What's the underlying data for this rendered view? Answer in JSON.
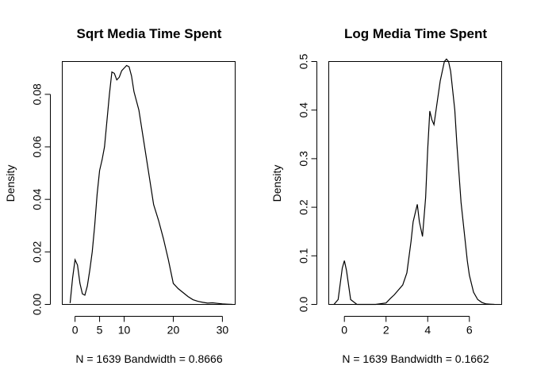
{
  "chart_data": [
    {
      "type": "line",
      "title": "Sqrt Media Time Spent",
      "xlabel": "N = 1639   Bandwidth = 0.8666",
      "ylabel": "Density",
      "xlim": [
        -2.6,
        32.6
      ],
      "ylim": [
        0,
        0.0925
      ],
      "xticks": [
        0,
        5,
        10,
        20,
        30
      ],
      "yticks": [
        0.0,
        0.02,
        0.04,
        0.06,
        0.08
      ],
      "ytick_labels": [
        "0.00",
        "0.02",
        "0.04",
        "0.06",
        "0.08"
      ],
      "grid": false,
      "series": [
        {
          "x": [
            -1.0,
            -0.5,
            0,
            0.5,
            1.0,
            1.5,
            2.0,
            2.5,
            3.0,
            3.5,
            4.0,
            4.5,
            5.0,
            5.5,
            6.0,
            7.0,
            7.5,
            8.0,
            8.5,
            9.0,
            9.5,
            10.0,
            10.5,
            11.0,
            11.5,
            12.0,
            13.0,
            14.0,
            15.0,
            16.0,
            17.0,
            18.0,
            19.0,
            20.0,
            21.0,
            22.0,
            23.0,
            24.0,
            25.0,
            26.0,
            27.0,
            28.0,
            29.0,
            30.0,
            31.0,
            32.0
          ],
          "y": [
            0.0005,
            0.01,
            0.017,
            0.015,
            0.008,
            0.004,
            0.0035,
            0.007,
            0.013,
            0.02,
            0.03,
            0.042,
            0.051,
            0.055,
            0.06,
            0.08,
            0.0885,
            0.088,
            0.0855,
            0.0865,
            0.089,
            0.09,
            0.091,
            0.0905,
            0.087,
            0.081,
            0.074,
            0.062,
            0.05,
            0.038,
            0.032,
            0.025,
            0.017,
            0.008,
            0.006,
            0.0045,
            0.003,
            0.0018,
            0.0012,
            0.0008,
            0.0005,
            0.0006,
            0.0004,
            0.0002,
            0.0001,
            0.0
          ]
        }
      ]
    },
    {
      "type": "line",
      "title": "Log Media Time Spent",
      "xlabel": "N = 1639   Bandwidth = 0.1662",
      "ylabel": "Density",
      "xlim": [
        -0.75,
        7.55
      ],
      "ylim": [
        0,
        0.5
      ],
      "xticks": [
        0,
        2,
        4,
        6
      ],
      "yticks": [
        0.0,
        0.1,
        0.2,
        0.3,
        0.4,
        0.5
      ],
      "ytick_labels": [
        "0.0",
        "0.1",
        "0.2",
        "0.3",
        "0.4",
        "0.5"
      ],
      "grid": false,
      "series": [
        {
          "x": [
            -0.5,
            -0.3,
            -0.1,
            0.0,
            0.1,
            0.3,
            0.6,
            1.0,
            1.5,
            2.0,
            2.2,
            2.4,
            2.6,
            2.8,
            3.0,
            3.2,
            3.3,
            3.5,
            3.6,
            3.75,
            3.9,
            4.0,
            4.1,
            4.2,
            4.3,
            4.4,
            4.5,
            4.6,
            4.7,
            4.8,
            4.9,
            5.0,
            5.1,
            5.2,
            5.3,
            5.4,
            5.5,
            5.6,
            5.7,
            5.8,
            5.9,
            6.0,
            6.2,
            6.4,
            6.6,
            6.8,
            7.0,
            7.2
          ],
          "y": [
            0.0,
            0.01,
            0.075,
            0.09,
            0.07,
            0.01,
            0.0,
            0.0,
            0.0,
            0.003,
            0.012,
            0.02,
            0.03,
            0.04,
            0.065,
            0.13,
            0.17,
            0.206,
            0.17,
            0.14,
            0.22,
            0.32,
            0.398,
            0.38,
            0.37,
            0.4,
            0.43,
            0.46,
            0.48,
            0.5,
            0.505,
            0.5,
            0.48,
            0.44,
            0.4,
            0.33,
            0.27,
            0.21,
            0.17,
            0.13,
            0.09,
            0.06,
            0.025,
            0.01,
            0.004,
            0.001,
            0.0005,
            0.0
          ]
        }
      ]
    }
  ]
}
